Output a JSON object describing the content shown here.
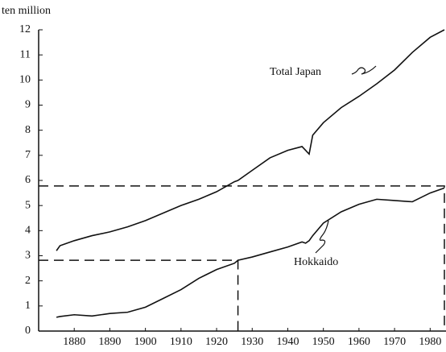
{
  "chart_data": {
    "type": "line",
    "y_axis_label": "ten million",
    "x": [
      1875,
      1876,
      1880,
      1885,
      1890,
      1895,
      1900,
      1905,
      1910,
      1915,
      1920,
      1925,
      1926,
      1930,
      1935,
      1940,
      1944,
      1945,
      1946,
      1947,
      1950,
      1955,
      1960,
      1965,
      1970,
      1975,
      1980,
      1984
    ],
    "series": [
      {
        "name": "Total Japan",
        "color": "#111111",
        "values": [
          3.2,
          3.4,
          3.6,
          3.8,
          3.95,
          4.15,
          4.4,
          4.7,
          5.0,
          5.25,
          5.55,
          5.95,
          6.0,
          6.4,
          6.9,
          7.2,
          7.35,
          7.2,
          7.05,
          7.8,
          8.3,
          8.9,
          9.35,
          9.85,
          10.4,
          11.1,
          11.7,
          12.0
        ]
      },
      {
        "name": "Hokkaido",
        "color": "#111111",
        "values": [
          0.55,
          0.58,
          0.65,
          0.6,
          0.7,
          0.75,
          0.95,
          1.3,
          1.65,
          2.1,
          2.45,
          2.7,
          2.82,
          2.95,
          3.15,
          3.35,
          3.55,
          3.5,
          3.6,
          3.8,
          4.3,
          4.75,
          5.05,
          5.25,
          5.2,
          5.15,
          5.5,
          5.7
        ]
      }
    ],
    "guides": [
      {
        "x": 1926,
        "y": 2.82
      },
      {
        "x": 1984,
        "y": 5.78
      }
    ],
    "xlim": [
      1870,
      1984
    ],
    "xticks": [
      1880,
      1890,
      1900,
      1910,
      1920,
      1930,
      1940,
      1950,
      1960,
      1970,
      1980
    ],
    "ylim": [
      0,
      12
    ],
    "yticks": [
      0,
      1,
      2,
      3,
      4,
      5,
      6,
      7,
      8,
      9,
      10,
      11,
      12
    ],
    "grid": false
  }
}
